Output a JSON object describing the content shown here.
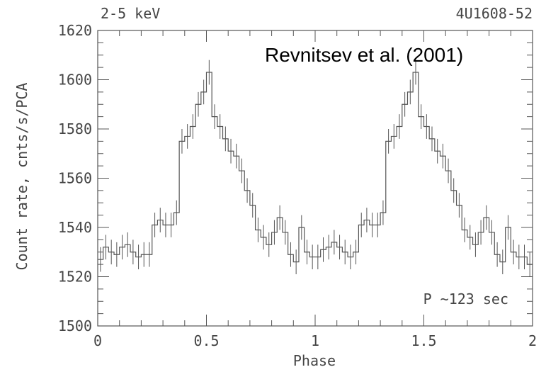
{
  "chart_data": {
    "type": "line",
    "style": "step",
    "title": "",
    "top_left_label": "2-5 keV",
    "top_right_label": "4U1608-52",
    "citation": "Revnitsev et al. (2001)",
    "annotation": "P ~123 sec",
    "xlabel": "Phase",
    "ylabel": "Count rate, cnts/s/PCA",
    "xlim": [
      0,
      2
    ],
    "ylim": [
      1500,
      1620
    ],
    "xticks": [
      0,
      0.5,
      1,
      1.5,
      2
    ],
    "xtick_labels": [
      "0",
      "0.5",
      "1",
      "1.5",
      "2"
    ],
    "yticks": [
      1500,
      1520,
      1540,
      1560,
      1580,
      1600,
      1620
    ],
    "ytick_labels": [
      "1500",
      "1520",
      "1540",
      "1560",
      "1580",
      "1600",
      "1620"
    ],
    "grid": false,
    "legend": "none",
    "bin_width": 0.025,
    "series": [
      {
        "x_start": [
          0.0,
          0.025,
          0.05,
          0.075,
          0.1,
          0.125,
          0.15,
          0.175,
          0.2,
          0.225,
          0.25,
          0.275,
          0.3,
          0.325,
          0.35,
          0.375,
          0.4,
          0.425,
          0.45,
          0.475,
          0.5,
          0.525,
          0.55,
          0.575,
          0.6,
          0.625,
          0.65,
          0.675,
          0.7,
          0.725,
          0.75,
          0.775,
          0.8,
          0.825,
          0.85,
          0.875,
          0.9,
          0.925,
          0.95,
          0.975,
          1.0,
          1.025,
          1.05,
          1.075,
          1.1,
          1.125,
          1.15,
          1.175,
          1.2,
          1.225,
          1.25,
          1.275,
          1.3,
          1.325,
          1.35,
          1.375,
          1.4,
          1.425,
          1.45,
          1.475,
          1.5,
          1.525,
          1.55,
          1.575,
          1.6,
          1.625,
          1.65,
          1.675,
          1.7,
          1.725,
          1.75,
          1.775,
          1.8,
          1.825,
          1.85,
          1.875,
          1.9,
          1.925,
          1.95,
          1.975
        ],
        "values": [
          1527,
          1532,
          1530,
          1529,
          1532,
          1533,
          1530,
          1528,
          1529,
          1529,
          1541,
          1543,
          1541,
          1541,
          1546,
          1575,
          1577,
          1581,
          1590,
          1595,
          1603,
          1585,
          1581,
          1576,
          1571,
          1569,
          1563,
          1555,
          1549,
          1539,
          1536,
          1533,
          1538,
          1544,
          1538,
          1529,
          1526,
          1540,
          1530,
          1528,
          1528,
          1531,
          1532,
          1534,
          1532,
          1530,
          1528,
          1530,
          1541,
          1543,
          1541,
          1541,
          1546,
          1575,
          1577,
          1581,
          1590,
          1595,
          1603,
          1585,
          1581,
          1576,
          1571,
          1569,
          1563,
          1555,
          1549,
          1539,
          1536,
          1533,
          1538,
          1544,
          1538,
          1529,
          1526,
          1540,
          1530,
          1528,
          1528,
          1525
        ],
        "errors": [
          5,
          5,
          5,
          5,
          5,
          5,
          5,
          5,
          5,
          5,
          5,
          5,
          5,
          5,
          5,
          5,
          5,
          5,
          5,
          5,
          5,
          5,
          5,
          5,
          5,
          5,
          5,
          5,
          5,
          5,
          5,
          5,
          5,
          5,
          5,
          5,
          5,
          5,
          5,
          5,
          5,
          5,
          5,
          5,
          5,
          5,
          5,
          5,
          5,
          5,
          5,
          5,
          5,
          5,
          5,
          5,
          5,
          5,
          5,
          5,
          5,
          5,
          5,
          5,
          5,
          5,
          5,
          5,
          5,
          5,
          5,
          5,
          5,
          5,
          5,
          5,
          5,
          5,
          5,
          5
        ]
      }
    ],
    "colors": {
      "line": "#555555",
      "axis": "#555555",
      "text": "#444444",
      "citation": "#000000"
    }
  }
}
